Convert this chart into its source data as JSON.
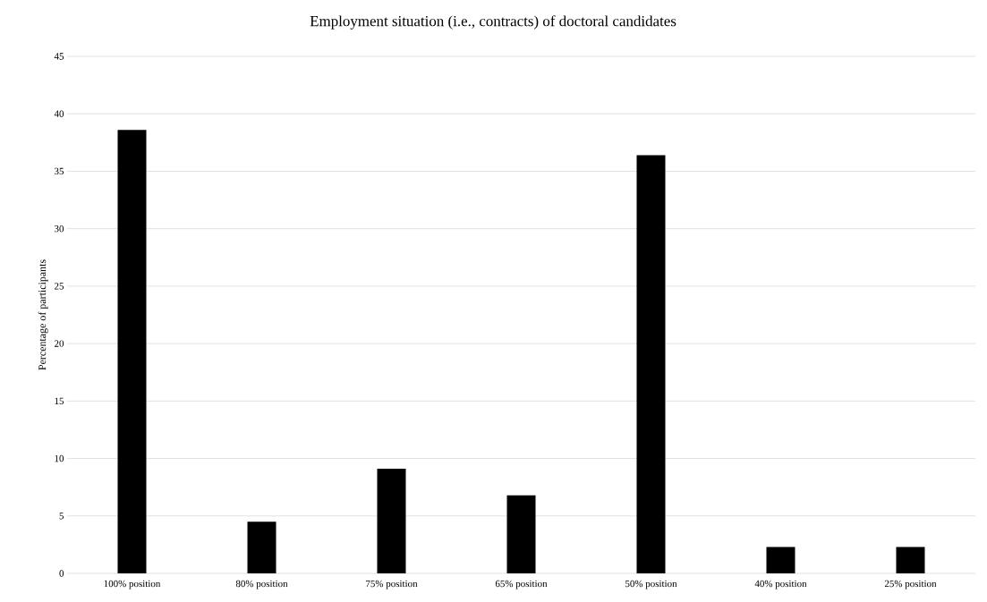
{
  "chart_data": {
    "type": "bar",
    "title": "Employment situation (i.e., contracts) of doctoral candidates",
    "ylabel": "Percentage of participants",
    "categories": [
      "100% position",
      "80% position",
      "75% position",
      "65% position",
      "50% position",
      "40% position",
      "25% position"
    ],
    "values": [
      38.6,
      4.5,
      9.1,
      6.8,
      36.4,
      2.3,
      2.3
    ],
    "color": "#000000",
    "ylim": [
      0,
      45
    ],
    "yticks": [
      0,
      5,
      10,
      15,
      20,
      25,
      30,
      35,
      40,
      45
    ],
    "grid": "y"
  }
}
